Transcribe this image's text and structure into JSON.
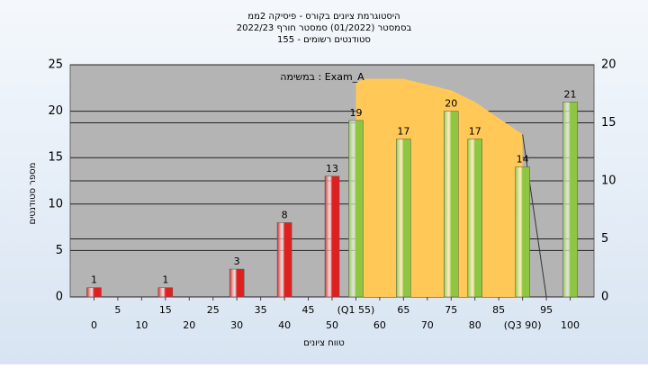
{
  "chart_data": {
    "type": "bar",
    "title": [
      "היסטוגרמת ציונים בקורס - פיסיקה 2ממ",
      "בסמסטר  (01/2022)  סמסטר חורף 2022/23",
      "155 - סטודנטים רשומים"
    ],
    "annotation": "במשימה : Exam_A",
    "y_label": "מספר סטודנטים",
    "x_label": "טווח ציונים",
    "x": [
      0,
      15,
      30,
      40,
      50,
      55,
      65,
      75,
      80,
      90,
      100
    ],
    "values": [
      1,
      1,
      3,
      8,
      13,
      19,
      17,
      20,
      17,
      14,
      21
    ],
    "colors": [
      "#e02020",
      "#e02020",
      "#e02020",
      "#e02020",
      "#e02020",
      "#8dc63f",
      "#8dc63f",
      "#8dc63f",
      "#8dc63f",
      "#8dc63f",
      "#8dc63f"
    ],
    "curve": {
      "x": [
        55,
        57,
        65,
        75,
        80,
        90,
        95
      ],
      "values": [
        18.5,
        18.8,
        18.8,
        17.8,
        16.8,
        14,
        0
      ],
      "color": "#ffc857",
      "axis": "y2"
    },
    "xlim": [
      -5,
      105
    ],
    "xticks": [
      0,
      5,
      10,
      15,
      20,
      25,
      30,
      35,
      40,
      45,
      50,
      {
        "value": 55,
        "label": "(Q1 55)"
      },
      60,
      65,
      70,
      75,
      80,
      85,
      {
        "value": 90,
        "label": "(Q3 90)"
      },
      95,
      100
    ],
    "ylim": [
      0,
      25
    ],
    "yticks": [
      0,
      5,
      10,
      15,
      20,
      25
    ],
    "y2lim": [
      0,
      20
    ],
    "y2ticks": [
      0,
      5,
      10,
      15,
      20
    ],
    "grid": true
  }
}
